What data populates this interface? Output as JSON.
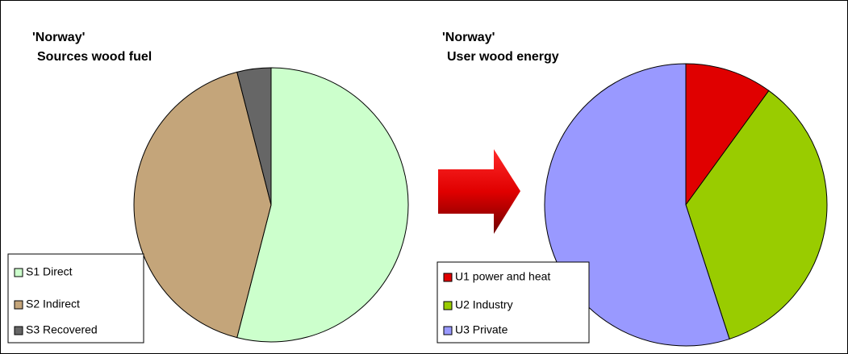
{
  "chart_data": [
    {
      "type": "pie",
      "title": [
        "'Norway'",
        "Sources wood fuel"
      ],
      "categories": [
        "S1 Direct",
        "S2 Indirect",
        "S3 Recovered"
      ],
      "values": [
        54,
        42,
        4
      ],
      "colors": [
        "#ccffcc",
        "#c4a57a",
        "#666666"
      ]
    },
    {
      "type": "pie",
      "title": [
        "'Norway'",
        "User wood energy"
      ],
      "categories": [
        "U1 power and heat",
        "U2 Industry",
        "U3 Private"
      ],
      "values": [
        10,
        35,
        55
      ],
      "colors": [
        "#e00000",
        "#99cc00",
        "#9999ff"
      ]
    }
  ]
}
